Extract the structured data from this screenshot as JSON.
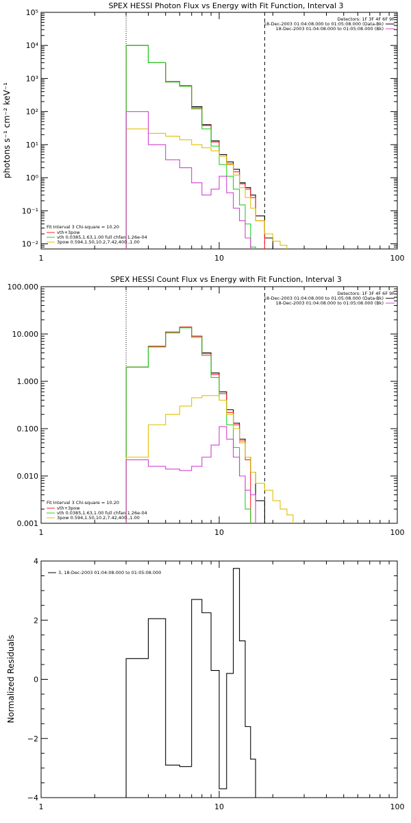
{
  "chart_data": [
    {
      "type": "line",
      "title": "SPEX HESSI Photon Flux vs Energy with Fit Function, Interval 3",
      "xlabel": "",
      "ylabel": "photons s⁻¹ cm⁻² keV⁻¹",
      "xscale": "log",
      "yscale": "log",
      "xlim": [
        1,
        100
      ],
      "ylim": [
        0.007,
        100000
      ],
      "x_ticks": [
        1,
        10,
        100
      ],
      "x_tick_labels": [
        "1",
        "10",
        "100"
      ],
      "y_ticks": [
        0.01,
        0.1,
        1,
        10,
        100,
        1000,
        10000,
        100000
      ],
      "y_tick_labels": [
        "10⁻²",
        "10⁻¹",
        "10⁰",
        "10¹",
        "10²",
        "10³",
        "10⁴",
        "10⁵"
      ],
      "markers": [
        {
          "x": 3.0,
          "style": "dotted"
        },
        {
          "x": 18.0,
          "style": "dashed"
        }
      ],
      "legend_top": [
        "Detectors: 1F 3F 4F 6F 9F",
        "18-Dec-2003 01:04:08.000 to 01:05:08.000 (Data-Bk)",
        "18-Dec-2003 01:04:08.000 to 01:05:08.000 (Bk)"
      ],
      "legend_bottom": {
        "header": "Fit Interval 3   Chi-square = 10.20",
        "items": [
          "vth+3pow",
          "vth 0.0385,1.63,1.00  full chfan 1.26e-04",
          "3pow 0.594,1.50,10.2,7.42,400.,1.00"
        ]
      },
      "edges": [
        3.0,
        3.5,
        4.0,
        4.5,
        5.0,
        5.5,
        6.0,
        6.5,
        7.0,
        7.5,
        8.0,
        8.5,
        9.0,
        9.5,
        10.0,
        11.0,
        12.0,
        13.0,
        14.0,
        15.0,
        16.0,
        18.0,
        20.0,
        22.0,
        24.0,
        26.0
      ],
      "series": [
        {
          "color": "#000000",
          "values": [
            10000,
            10000,
            3000,
            3000,
            800,
            800,
            600,
            600,
            140,
            140,
            40,
            40,
            13,
            13,
            5,
            3,
            1.8,
            0.7,
            0.5,
            0.3,
            0.07,
            0.015,
            null,
            null,
            null
          ]
        },
        {
          "color": "#ff2020",
          "values": [
            10000,
            10000,
            3000,
            3000,
            780,
            780,
            590,
            590,
            130,
            130,
            38,
            38,
            12,
            12,
            4.5,
            2.6,
            1.5,
            0.65,
            0.45,
            0.25,
            0.05,
            null,
            null,
            null,
            null
          ]
        },
        {
          "color": "#20d020",
          "values": [
            10000,
            10000,
            3000,
            3000,
            780,
            780,
            580,
            580,
            120,
            120,
            30,
            30,
            9,
            9,
            2.5,
            1.1,
            0.45,
            0.15,
            0.04,
            0.008,
            null,
            null,
            null,
            null,
            null
          ]
        },
        {
          "color": "#e0c000",
          "values": [
            30,
            30,
            22,
            22,
            18,
            18,
            14,
            14,
            10,
            10,
            8,
            8,
            6.5,
            6.5,
            4.5,
            2.5,
            1.2,
            0.5,
            0.25,
            0.12,
            0.05,
            0.02,
            0.012,
            0.009,
            null
          ]
        },
        {
          "color": "#d040d0",
          "values": [
            100,
            100,
            10,
            10,
            3.5,
            3.5,
            2,
            2,
            0.7,
            0.7,
            0.3,
            0.3,
            0.45,
            0.45,
            1.1,
            0.35,
            0.12,
            0.05,
            0.015,
            null,
            null,
            null,
            null,
            null,
            null
          ]
        }
      ]
    },
    {
      "type": "line",
      "title": "SPEX HESSI Count Flux vs Energy with Fit Function, Interval 3",
      "xlabel": "",
      "ylabel": "",
      "xscale": "log",
      "yscale": "log",
      "xlim": [
        1,
        100
      ],
      "ylim": [
        0.001,
        100
      ],
      "x_ticks": [
        1,
        10,
        100
      ],
      "x_tick_labels": [
        "1",
        "10",
        "100"
      ],
      "y_ticks": [
        0.001,
        0.01,
        0.1,
        1,
        10,
        100
      ],
      "y_tick_labels": [
        "0.001",
        "0.010",
        "0.100",
        "1.000",
        "10.000",
        "100.000"
      ],
      "markers": [
        {
          "x": 3.0,
          "style": "dotted"
        },
        {
          "x": 18.0,
          "style": "dashed"
        }
      ],
      "legend_top": [
        "Detectors: 1F 3F 4F 6F 9F",
        "18-Dec-2003 01:04:08.000 to 01:05:08.000 (Data-Bk)",
        "18-Dec-2003 01:04:08.000 to 01:05:08.000 (Bk)"
      ],
      "legend_bottom": {
        "header": "Fit Interval 3   Chi-square = 10.20",
        "items": [
          "vth+3pow",
          "vth 0.0385,1.63,1.00  full chfan 1.26e-04",
          "3pow 0.594,1.50,10.2,7.42,400.,1.00"
        ]
      },
      "edges": [
        3.0,
        3.5,
        4.0,
        4.5,
        5.0,
        5.5,
        6.0,
        6.5,
        7.0,
        7.5,
        8.0,
        8.5,
        9.0,
        9.5,
        10.0,
        11.0,
        12.0,
        13.0,
        14.0,
        15.0,
        16.0,
        18.0,
        20.0,
        22.0,
        24.0,
        26.0
      ],
      "series": [
        {
          "color": "#000000",
          "values": [
            2.0,
            2.0,
            5.5,
            5.5,
            11,
            11,
            14,
            14,
            9,
            9,
            4,
            4,
            1.5,
            1.5,
            0.6,
            0.25,
            0.13,
            0.06,
            0.025,
            0.012,
            0.003,
            null,
            null,
            null,
            null
          ]
        },
        {
          "color": "#ff2020",
          "values": [
            2.0,
            2.0,
            5.5,
            5.5,
            11,
            11,
            14,
            14,
            9,
            9,
            3.8,
            3.8,
            1.4,
            1.4,
            0.55,
            0.22,
            0.12,
            0.055,
            0.022,
            null,
            null,
            null,
            null,
            null,
            null
          ]
        },
        {
          "color": "#20d020",
          "values": [
            2.0,
            2.0,
            5.3,
            5.3,
            10.5,
            10.5,
            13.5,
            13.5,
            8.5,
            8.5,
            3.5,
            3.5,
            1.2,
            1.2,
            0.4,
            0.12,
            0.04,
            0.01,
            0.002,
            null,
            null,
            null,
            null,
            null,
            null
          ]
        },
        {
          "color": "#e0c000",
          "values": [
            0.025,
            0.025,
            0.12,
            0.12,
            0.2,
            0.2,
            0.3,
            0.3,
            0.45,
            0.45,
            0.5,
            0.5,
            0.5,
            0.5,
            0.4,
            0.2,
            0.1,
            0.05,
            0.025,
            0.012,
            0.007,
            0.005,
            0.003,
            0.002,
            0.0015
          ]
        },
        {
          "color": "#d040d0",
          "values": [
            0.022,
            0.022,
            0.016,
            0.016,
            0.014,
            0.014,
            0.013,
            0.013,
            0.016,
            0.016,
            0.025,
            0.025,
            0.045,
            0.045,
            0.11,
            0.06,
            0.025,
            0.01,
            0.005,
            0.004,
            null,
            null,
            null,
            null,
            null
          ]
        }
      ]
    },
    {
      "type": "line",
      "title": "",
      "xlabel": "",
      "ylabel": "Normalized Residuals",
      "xscale": "log",
      "yscale": "linear",
      "xlim": [
        1,
        100
      ],
      "ylim": [
        -4,
        4
      ],
      "x_ticks": [
        1,
        10,
        100
      ],
      "x_tick_labels": [
        "1",
        "10",
        "100"
      ],
      "y_ticks": [
        -4,
        -2,
        0,
        2,
        4
      ],
      "y_tick_labels": [
        "−4",
        "−2",
        "0",
        "2",
        "4"
      ],
      "legend_top_left": "3, 18-Dec-2003 01:04:08.000 to 01:05:08.000",
      "edges": [
        3.0,
        3.5,
        4.0,
        4.5,
        5.0,
        5.5,
        6.0,
        6.5,
        7.0,
        7.5,
        8.0,
        8.5,
        9.0,
        9.5,
        10.0,
        11.0,
        12.0,
        13.0,
        14.0,
        15.0,
        16.0,
        18.0
      ],
      "series": [
        {
          "color": "#000000",
          "values": [
            0.7,
            0.7,
            2.05,
            2.05,
            -2.9,
            -2.9,
            -2.95,
            -2.95,
            2.7,
            2.7,
            2.25,
            2.25,
            0.3,
            0.3,
            -3.7,
            0.2,
            3.75,
            1.3,
            -1.6,
            -2.7,
            -4.0
          ]
        }
      ]
    }
  ]
}
